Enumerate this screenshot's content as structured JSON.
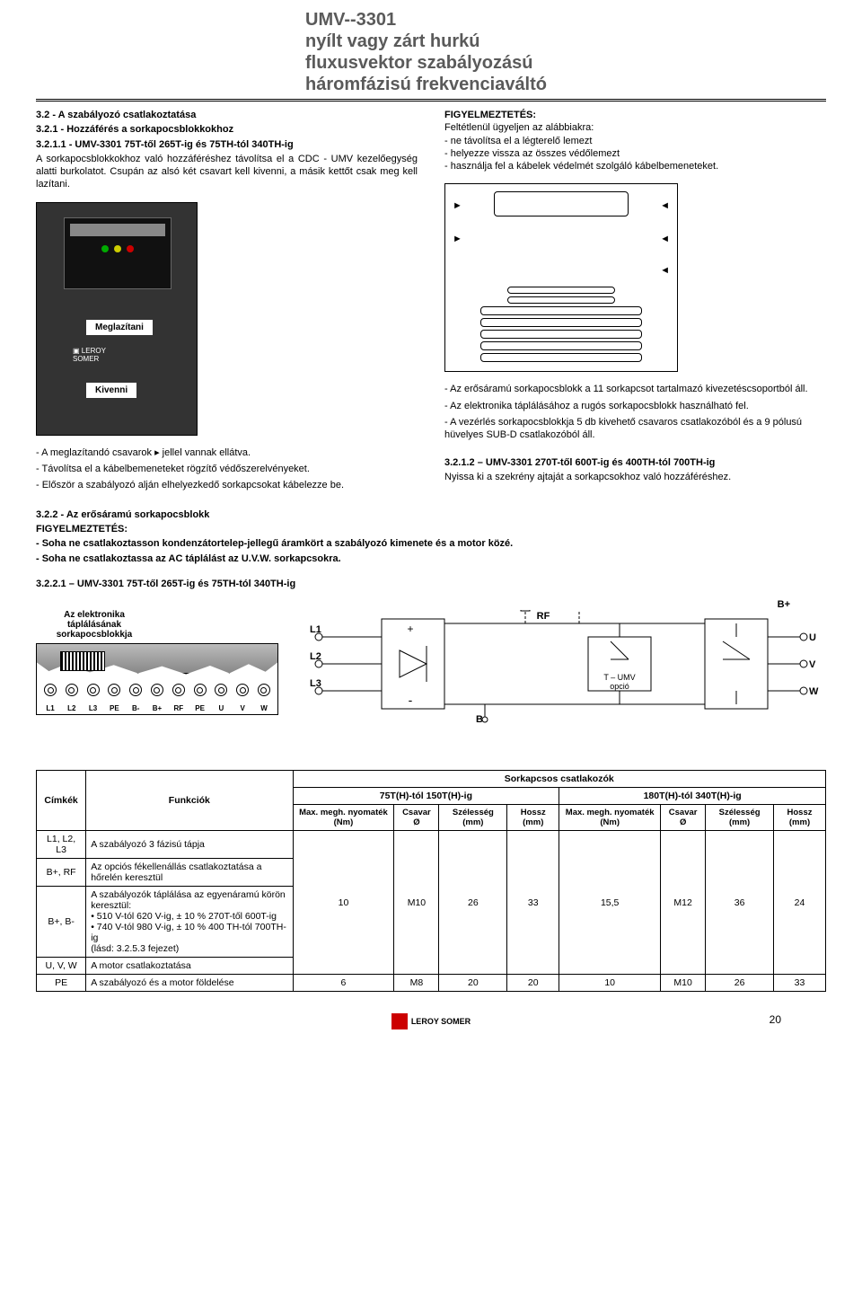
{
  "title": {
    "line1": "UMV--3301",
    "line2": "nyílt vagy zárt hurkú",
    "line3": "fluxusvektor szabályozású",
    "line4": "háromfázisú frekvenciaváltó"
  },
  "left": {
    "h1": "3.2 - A szabályozó csatlakoztatása",
    "h2": "3.2.1 - Hozzáférés a sorkapocsblokkokhoz",
    "h3": "3.2.1.1 - UMV-3301 75T-től 265T-ig és 75TH-tól 340TH-ig",
    "p1": "A sorkapocsblokkokhoz való hozzáféréshez távolítsa el a CDC - UMV kezelőegység alatti burkolatot. Csupán az alsó két csavart kell kivenni, a  másik kettőt csak meg kell lazítani.",
    "label1": "Meglazítani",
    "label2": "Kivenni",
    "bul1": "- A meglazítandó csavarok ▸ jellel vannak ellátva.",
    "bul2": "- Távolítsa el a kábelbemeneteket rögzítő védőszerelvényeket.",
    "bul3": "- Először a szabályozó alján elhelyezkedő sorkapcsokat kábelezze be."
  },
  "right": {
    "warn_h": "FIGYELMEZTETÉS:",
    "warn_p": "Feltétlenül ügyeljen az alábbiakra:",
    "warn_b1": "- ne távolítsa el a légterelő lemezt",
    "warn_b2": "- helyezze vissza az összes védőlemezt",
    "warn_b3": "- használja fel a kábelek védelmét szolgáló kábelbemeneteket.",
    "mid_b1": "- Az erősáramú sorkapocsblokk a 11 sorkapcsot tartalmazó kivezetéscsoportból áll.",
    "mid_b2": "- Az elektronika táplálásához a rugós sorkapocsblokk használható fel.",
    "mid_b3": "- A vezérlés sorkapocsblokkja 5 db kivehető csavaros csatlakozóból és a 9 pólusú hüvelyes SUB-D csatlakozóból áll.",
    "h4": "3.2.1.2 – UMV-3301 270T-től 600T-ig és 400TH-tól 700TH-ig",
    "p4": "Nyissa ki a szekrény ajtaját a sorkapcsokhoz való hozzáféréshez."
  },
  "sec322": {
    "h": "3.2.2 - Az erősáramú sorkapocsblokk",
    "wh": "FIGYELMEZTETÉS:",
    "b1": "- Soha ne csatlakoztasson kondenzátortelep-jellegű áramkört a szabályozó kimenete és a motor közé.",
    "b2": "- Soha ne csatlakoztassa az AC táplálást az U.V.W. sorkapcsokra.",
    "h2": "3.2.2.1 – UMV-3301 75T-től 265T-ig és 75TH-tól 340TH-ig",
    "elec": "Az elektronika táplálásának sorkapocsblokkja"
  },
  "terminals": [
    "L1",
    "L2",
    "L3",
    "PE",
    "B-",
    "B+",
    "RF",
    "PE",
    "U",
    "V",
    "W"
  ],
  "schem": {
    "L1": "L1",
    "L2": "L2",
    "L3": "L3",
    "RF": "RF",
    "U": "U",
    "V": "V",
    "W": "W",
    "Bplus": "B+",
    "Bminus": "B-",
    "opt": "T – UMV\nopció",
    "plus": "+",
    "minus": "-"
  },
  "table": {
    "h_cimkek": "Címkék",
    "h_funk": "Funkciók",
    "h_sork": "Sorkapcsos csatlakozók",
    "h_r1": "75T(H)-tól 150T(H)-ig",
    "h_r2": "180T(H)-tól 340T(H)-ig",
    "sub_max": "Max. megh. nyomaték (Nm)",
    "sub_csavar": "Csavar Ø",
    "sub_szel": "Szélesség (mm)",
    "sub_hossz": "Hossz (mm)",
    "rows": [
      {
        "cim": "L1, L2, L3",
        "funk": "A szabályozó 3 fázisú tápja"
      },
      {
        "cim": "B+, RF",
        "funk": "Az opciós fékellenállás csatlakoztatása a hőrelén keresztül"
      },
      {
        "cim": "B+, B-",
        "funk": "A szabályozók táplálása az egyenáramú körön keresztül:",
        "li1": "510 V-tól 620 V-ig, ± 10 % 270T-től 600T-ig",
        "li2": "740 V-tól 980 V-ig, ± 10 % 400 TH-tól 700TH-ig",
        "end": "(lásd: 3.2.5.3 fejezet)"
      },
      {
        "cim": "U, V, W",
        "funk": "A motor csatlakoztatása"
      },
      {
        "cim": "PE",
        "funk": "A szabályozó és a motor földelése"
      }
    ],
    "vals1": {
      "max": "10",
      "cs": "M10",
      "sz": "26",
      "ho": "33"
    },
    "vals2": {
      "max": "15,5",
      "cs": "M12",
      "sz": "36",
      "ho": "24"
    },
    "pe1": {
      "max": "6",
      "cs": "M8",
      "sz": "20",
      "ho": "20"
    },
    "pe2": {
      "max": "10",
      "cs": "M10",
      "sz": "26",
      "ho": "33"
    }
  },
  "footer": {
    "brand": "LEROY SOMER",
    "page": "20"
  }
}
